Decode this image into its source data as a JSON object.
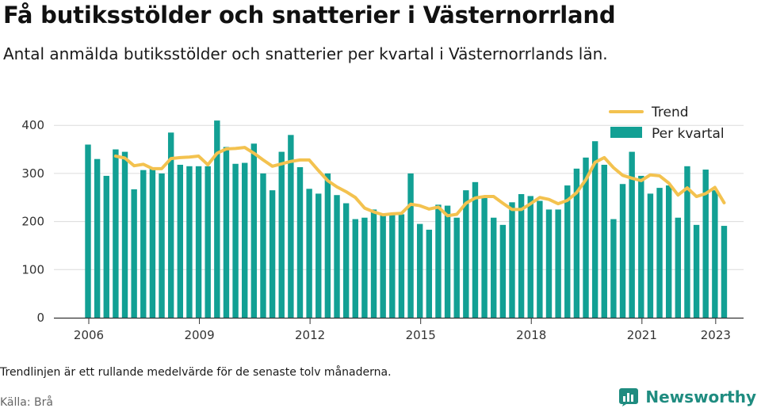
{
  "title": "Få butiksstölder och snatterier i Västernorrland",
  "subtitle": "Antal anmälda butiksstölder och snatterier per kvartal i Västernorrlands län.",
  "note": "Trendlinjen är ett rullande medelvärde för de senaste tolv månaderna.",
  "source": "Källa: Brå",
  "brand": "Newsworthy",
  "colors": {
    "bars": "#12a094",
    "trend": "#f3c24f",
    "grid": "#dcdcdc",
    "axis": "#333333",
    "brand": "#1f8c80"
  },
  "brand_icon": "bar-chart-logo-icon",
  "chart_data": {
    "type": "bar",
    "x_start_year": 2006,
    "quarters_per_year": 4,
    "xticks": [
      "2006",
      "2009",
      "2012",
      "2015",
      "2018",
      "2021",
      "2023"
    ],
    "yticks": [
      "0",
      "100",
      "200",
      "300",
      "400"
    ],
    "ylim": [
      0,
      420
    ],
    "grid": true,
    "legend_position": "top-right",
    "series": [
      {
        "name": "Per kvartal",
        "type": "bar",
        "values": [
          360,
          330,
          295,
          350,
          345,
          267,
          307,
          310,
          300,
          385,
          318,
          315,
          315,
          315,
          410,
          355,
          320,
          322,
          362,
          300,
          265,
          345,
          380,
          313,
          268,
          258,
          300,
          255,
          238,
          205,
          208,
          225,
          215,
          215,
          215,
          300,
          195,
          183,
          235,
          233,
          208,
          265,
          282,
          250,
          208,
          193,
          240,
          257,
          253,
          243,
          225,
          225,
          275,
          310,
          333,
          367,
          318,
          205,
          278,
          345,
          295,
          258,
          270,
          275,
          208,
          315,
          193,
          308,
          265,
          191
        ]
      },
      {
        "name": "Trend",
        "type": "line",
        "values": [
          null,
          null,
          null,
          336,
          332,
          316,
          319,
          310,
          310,
          331,
          333,
          334,
          336,
          318,
          342,
          351,
          352,
          354,
          342,
          328,
          315,
          320,
          325,
          328,
          328,
          306,
          285,
          272,
          262,
          250,
          228,
          220,
          214,
          216,
          217,
          236,
          233,
          226,
          230,
          212,
          215,
          238,
          249,
          252,
          252,
          238,
          225,
          225,
          237,
          250,
          246,
          237,
          244,
          260,
          287,
          323,
          333,
          312,
          296,
          290,
          285,
          297,
          295,
          280,
          255,
          270,
          252,
          258,
          271,
          239
        ]
      }
    ]
  }
}
